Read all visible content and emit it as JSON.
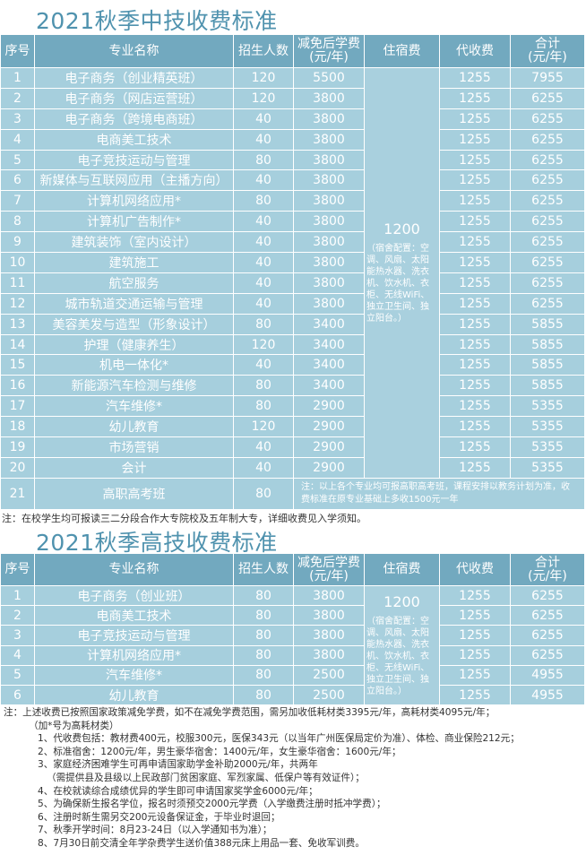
{
  "section1": {
    "title": "2021秋季中技收费标准",
    "headers": {
      "no": "序号",
      "name": "专业名称",
      "count": "招生人数",
      "tuition": "减免后学费\n(元/年)",
      "dorm": "住宿费",
      "agent": "代收费",
      "total": "合计\n(元/年)"
    },
    "dorm_fee": "1200",
    "dorm_desc": "（宿舍配置：空调、风扇、太阳能热水器、洗衣机、饮水机、衣柜、无线WiFi、独立卫生间、独立阳台。）",
    "rows": [
      {
        "no": "1",
        "name": "电子商务（创业精英班）",
        "count": "120",
        "tuition": "5500",
        "agent": "1255",
        "total": "7955"
      },
      {
        "no": "2",
        "name": "电子商务（网店运营班）",
        "count": "120",
        "tuition": "3800",
        "agent": "1255",
        "total": "6255"
      },
      {
        "no": "3",
        "name": "电子商务（跨境电商班）",
        "count": "40",
        "tuition": "3800",
        "agent": "1255",
        "total": "6255"
      },
      {
        "no": "4",
        "name": "电商美工技术",
        "count": "40",
        "tuition": "3800",
        "agent": "1255",
        "total": "6255"
      },
      {
        "no": "5",
        "name": "电子竞技运动与管理",
        "count": "80",
        "tuition": "3800",
        "agent": "1255",
        "total": "6255"
      },
      {
        "no": "6",
        "name": "新媒体与互联网应用（主播方向）",
        "count": "40",
        "tuition": "3800",
        "agent": "1255",
        "total": "6255"
      },
      {
        "no": "7",
        "name": "计算机网络应用*",
        "count": "80",
        "tuition": "3800",
        "agent": "1255",
        "total": "6255"
      },
      {
        "no": "8",
        "name": "计算机广告制作*",
        "count": "40",
        "tuition": "3800",
        "agent": "1255",
        "total": "6255"
      },
      {
        "no": "9",
        "name": "建筑装饰（室内设计）",
        "count": "40",
        "tuition": "3800",
        "agent": "1255",
        "total": "6255"
      },
      {
        "no": "10",
        "name": "建筑施工",
        "count": "40",
        "tuition": "3800",
        "agent": "1255",
        "total": "6255"
      },
      {
        "no": "11",
        "name": "航空服务",
        "count": "40",
        "tuition": "3800",
        "agent": "1255",
        "total": "6255"
      },
      {
        "no": "12",
        "name": "城市轨道交通运输与管理",
        "count": "40",
        "tuition": "3800",
        "agent": "1255",
        "total": "6255"
      },
      {
        "no": "13",
        "name": "美容美发与造型（形象设计）",
        "count": "80",
        "tuition": "3400",
        "agent": "1255",
        "total": "5855"
      },
      {
        "no": "14",
        "name": "护理（健康养生）",
        "count": "120",
        "tuition": "3400",
        "agent": "1255",
        "total": "5855"
      },
      {
        "no": "15",
        "name": "机电一体化*",
        "count": "40",
        "tuition": "3400",
        "agent": "1255",
        "total": "5855"
      },
      {
        "no": "16",
        "name": "新能源汽车检测与维修",
        "count": "80",
        "tuition": "3400",
        "agent": "1255",
        "total": "5855"
      },
      {
        "no": "17",
        "name": "汽车维修*",
        "count": "80",
        "tuition": "2900",
        "agent": "1255",
        "total": "5355"
      },
      {
        "no": "18",
        "name": "幼儿教育",
        "count": "120",
        "tuition": "2900",
        "agent": "1255",
        "total": "5355"
      },
      {
        "no": "19",
        "name": "市场营销",
        "count": "40",
        "tuition": "2900",
        "agent": "1255",
        "total": "5355"
      },
      {
        "no": "20",
        "name": "会计",
        "count": "40",
        "tuition": "2900",
        "agent": "1255",
        "total": "5355"
      }
    ],
    "last_row": {
      "no": "21",
      "name": "高职高考班",
      "count": "80",
      "note": "注：以上各个专业均可报高职高考班，课程安排以教务计划为准，收费标准在原专业基础上多收1500元一年"
    },
    "footnote": "注：在校学生均可报读三二分段合作大专院校及五年制大专，详细收费见入学须知。"
  },
  "section2": {
    "title": "2021秋季高技收费标准",
    "headers": {
      "no": "序号",
      "name": "专业名称",
      "count": "招生人数",
      "tuition": "减免后学费\n(元/年)",
      "dorm": "住宿费",
      "agent": "代收费",
      "total": "合计\n(元/年)"
    },
    "dorm_fee": "1200",
    "dorm_desc": "（宿舍配置：空调、风扇、太阳能热水器、洗衣机、饮水机、衣柜、无线WiFi、独立卫生间、独立阳台。）",
    "rows": [
      {
        "no": "1",
        "name": "电子商务（创业班）",
        "count": "80",
        "tuition": "3800",
        "agent": "1255",
        "total": "6255"
      },
      {
        "no": "2",
        "name": "电商美工技术",
        "count": "80",
        "tuition": "3800",
        "agent": "1255",
        "total": "6255"
      },
      {
        "no": "3",
        "name": "电子竞技运动与管理",
        "count": "80",
        "tuition": "3800",
        "agent": "1255",
        "total": "6255"
      },
      {
        "no": "4",
        "name": "计算机网络应用*",
        "count": "80",
        "tuition": "3800",
        "agent": "1255",
        "total": "6255"
      },
      {
        "no": "5",
        "name": "汽车维修*",
        "count": "80",
        "tuition": "2500",
        "agent": "1255",
        "total": "4955"
      },
      {
        "no": "6",
        "name": "幼儿教育",
        "count": "80",
        "tuition": "2500",
        "agent": "1255",
        "total": "4955"
      }
    ]
  },
  "notes": [
    "注：上述收费已按照国家政策减免学费，如不在减免学费范围，需另加收低耗材类3395元/年，高耗材类4095元/年；",
    "（加*号为高耗材类）",
    "1、代收费包括：教材费400元，校服300元，医保343元（以当年广州医保局定价为准）、体检、商业保险212元；",
    "2、标准宿舍：1200元/年，男生豪华宿舍：1400元/年，女生豪华宿舍：1600元/年；",
    "3、家庭经济困难学生可再申请国家助学金补助2000元/年，共两年",
    "（需提供县及县级以上民政部门贫困家庭、军烈家属、低保户等有效证件）；",
    "4、在校就读综合成绩优异的学生即可申请国家奖学金6000元/年；",
    "5、为确保新生报名学位，报名时须预交2000元学费（入学缴费注册时抵冲学费）；",
    "6、注册时新生需另交200元设备保证金，于毕业时退回；",
    "7、秋季开学时间：8月23-24日（以入学通知书为准）；",
    "8、7月30日前交清全年学杂费学生送价值388元床上用品一套、免收军训费。"
  ]
}
